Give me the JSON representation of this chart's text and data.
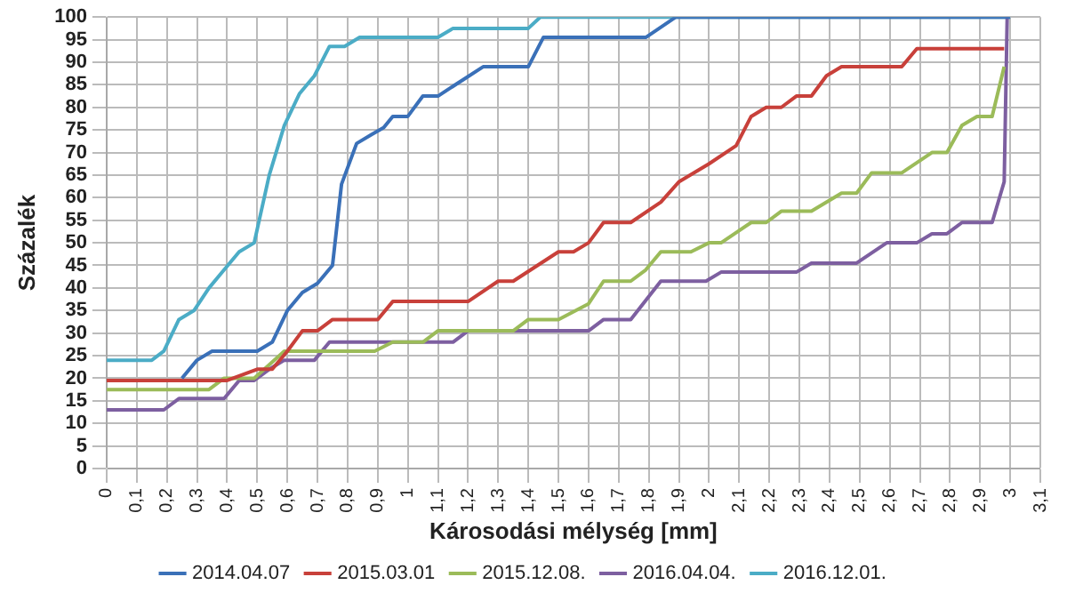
{
  "chart_data": {
    "type": "line",
    "xlabel": "Károsodási mélység [mm]",
    "ylabel": "Százalék",
    "xlim": [
      0,
      3.1
    ],
    "ylim": [
      0,
      100
    ],
    "xticks": [
      0,
      {
        "value": 0.1,
        "label": "0,1"
      },
      {
        "value": 0.2,
        "label": "0,2"
      },
      {
        "value": 0.3,
        "label": "0,3"
      },
      {
        "value": 0.4,
        "label": "0,4"
      },
      {
        "value": 0.5,
        "label": "0,5"
      },
      {
        "value": 0.6,
        "label": "0,6"
      },
      {
        "value": 0.7,
        "label": "0,7"
      },
      {
        "value": 0.8,
        "label": "0,8"
      },
      {
        "value": 0.9,
        "label": "0,9"
      },
      1,
      {
        "value": 1.1,
        "label": "1,1"
      },
      {
        "value": 1.2,
        "label": "1,2"
      },
      {
        "value": 1.3,
        "label": "1,3"
      },
      {
        "value": 1.4,
        "label": "1,4"
      },
      {
        "value": 1.5,
        "label": "1,5"
      },
      {
        "value": 1.6,
        "label": "1,6"
      },
      {
        "value": 1.7,
        "label": "1,7"
      },
      {
        "value": 1.8,
        "label": "1,8"
      },
      {
        "value": 1.9,
        "label": "1,9"
      },
      2,
      {
        "value": 2.1,
        "label": "2,1"
      },
      {
        "value": 2.2,
        "label": "2,2"
      },
      {
        "value": 2.3,
        "label": "2,3"
      },
      {
        "value": 2.4,
        "label": "2,4"
      },
      {
        "value": 2.5,
        "label": "2,5"
      },
      {
        "value": 2.6,
        "label": "2,6"
      },
      {
        "value": 2.7,
        "label": "2,7"
      },
      {
        "value": 2.8,
        "label": "2,8"
      },
      {
        "value": 2.9,
        "label": "2,9"
      },
      3,
      {
        "value": 3.1,
        "label": "3,1"
      }
    ],
    "yticks": [
      0,
      5,
      10,
      15,
      20,
      25,
      30,
      35,
      40,
      45,
      50,
      55,
      60,
      65,
      70,
      75,
      80,
      85,
      90,
      95,
      100
    ],
    "grid": true,
    "legend": "bottom",
    "marker": "none",
    "line_style": "solid",
    "series": [
      {
        "name": "2014.04.07",
        "color": "#3a70b8",
        "x": [
          0.25,
          0.3,
          0.35,
          0.5,
          0.55,
          0.6,
          0.65,
          0.7,
          0.75,
          0.78,
          0.83,
          0.88,
          0.92,
          0.95,
          1.0,
          1.05,
          1.1,
          1.25,
          1.4,
          1.45,
          1.79,
          1.89,
          3.0
        ],
        "values": [
          20,
          24,
          26,
          26,
          28,
          35,
          39,
          41,
          45,
          63,
          72,
          74,
          75.5,
          78,
          78,
          82.5,
          82.5,
          89,
          89,
          95.5,
          95.5,
          100,
          100
        ]
      },
      {
        "name": "2015.03.01",
        "color": "#c8403a",
        "x": [
          0,
          0.4,
          0.5,
          0.55,
          0.6,
          0.65,
          0.7,
          0.75,
          0.9,
          0.95,
          1.2,
          1.3,
          1.35,
          1.5,
          1.55,
          1.6,
          1.65,
          1.74,
          1.84,
          1.9,
          2.0,
          2.09,
          2.14,
          2.19,
          2.24,
          2.29,
          2.34,
          2.39,
          2.44,
          2.64,
          2.69,
          2.98
        ],
        "values": [
          19.5,
          19.5,
          22,
          22,
          26,
          30.5,
          30.5,
          33,
          33,
          37,
          37,
          41.5,
          41.5,
          48,
          48,
          50,
          54.5,
          54.5,
          59,
          63.5,
          67.5,
          71.5,
          78,
          80,
          80,
          82.5,
          82.5,
          87,
          89,
          89,
          93,
          93
        ]
      },
      {
        "name": "2015.12.08.",
        "color": "#9bbb59",
        "x": [
          0,
          0.34,
          0.39,
          0.49,
          0.59,
          0.89,
          0.95,
          1.05,
          1.1,
          1.35,
          1.4,
          1.5,
          1.6,
          1.65,
          1.74,
          1.79,
          1.84,
          1.94,
          2.0,
          2.04,
          2.14,
          2.19,
          2.24,
          2.34,
          2.44,
          2.49,
          2.54,
          2.64,
          2.74,
          2.79,
          2.84,
          2.89,
          2.94,
          2.98
        ],
        "values": [
          17.5,
          17.5,
          20,
          20,
          26,
          26,
          28,
          28,
          30.5,
          30.5,
          33,
          33,
          36.5,
          41.5,
          41.5,
          44,
          48,
          48,
          50,
          50,
          54.5,
          54.5,
          57,
          57,
          61,
          61,
          65.5,
          65.5,
          70,
          70,
          76,
          78,
          78,
          89
        ]
      },
      {
        "name": "2016.04.04.",
        "color": "#7d5fa0",
        "x": [
          0,
          0.19,
          0.24,
          0.39,
          0.44,
          0.49,
          0.54,
          0.59,
          0.69,
          0.74,
          1.15,
          1.2,
          1.6,
          1.65,
          1.74,
          1.84,
          1.99,
          2.04,
          2.29,
          2.34,
          2.49,
          2.59,
          2.69,
          2.74,
          2.79,
          2.84,
          2.94,
          2.98,
          2.99
        ],
        "values": [
          13,
          13,
          15.5,
          15.5,
          19.5,
          19.5,
          22,
          24,
          24,
          28,
          28,
          30.5,
          30.5,
          33,
          33,
          41.5,
          41.5,
          43.5,
          43.5,
          45.5,
          45.5,
          50,
          50,
          52,
          52,
          54.5,
          54.5,
          63.5,
          100
        ]
      },
      {
        "name": "2016.12.01.",
        "color": "#4bacc6",
        "x": [
          0,
          0.15,
          0.19,
          0.24,
          0.29,
          0.34,
          0.39,
          0.44,
          0.49,
          0.54,
          0.59,
          0.64,
          0.69,
          0.74,
          0.79,
          0.84,
          1.1,
          1.15,
          1.4,
          1.44,
          3.0
        ],
        "values": [
          24,
          24,
          26,
          33,
          35,
          40,
          44,
          48,
          50,
          65,
          76,
          83,
          87,
          93.5,
          93.5,
          95.5,
          95.5,
          97.5,
          97.5,
          100,
          100
        ]
      }
    ]
  }
}
